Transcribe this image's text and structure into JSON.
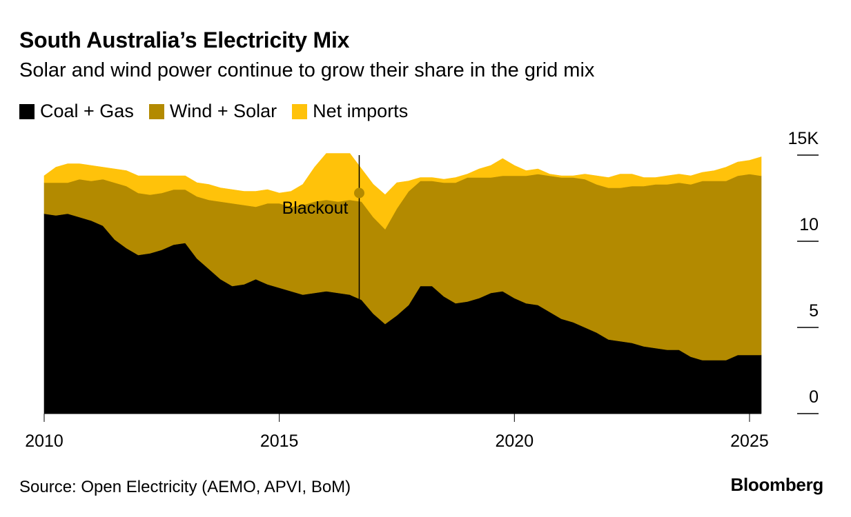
{
  "header": {
    "title": "South Australia’s Electricity Mix",
    "subtitle": "Solar and wind power continue to grow their share in the grid mix"
  },
  "footer": {
    "source": "Source: Open Electricity (AEMO, APVI, BoM)",
    "brand": "Bloomberg"
  },
  "chart_data": {
    "type": "area",
    "stacked": true,
    "x": [
      2010.0,
      2010.25,
      2010.5,
      2010.75,
      2011.0,
      2011.25,
      2011.5,
      2011.75,
      2012.0,
      2012.25,
      2012.5,
      2012.75,
      2013.0,
      2013.25,
      2013.5,
      2013.75,
      2014.0,
      2014.25,
      2014.5,
      2014.75,
      2015.0,
      2015.25,
      2015.5,
      2015.75,
      2016.0,
      2016.25,
      2016.5,
      2016.75,
      2017.0,
      2017.25,
      2017.5,
      2017.75,
      2018.0,
      2018.25,
      2018.5,
      2018.75,
      2019.0,
      2019.25,
      2019.5,
      2019.75,
      2020.0,
      2020.25,
      2020.5,
      2020.75,
      2021.0,
      2021.25,
      2021.5,
      2021.75,
      2022.0,
      2022.25,
      2022.5,
      2022.75,
      2023.0,
      2023.25,
      2023.5,
      2023.75,
      2024.0,
      2024.25,
      2024.5,
      2024.75,
      2025.0,
      2025.25
    ],
    "series": [
      {
        "name": "Coal + Gas",
        "color": "#000000",
        "values": [
          11.6,
          11.5,
          11.6,
          11.4,
          11.2,
          10.9,
          10.1,
          9.6,
          9.2,
          9.3,
          9.5,
          9.8,
          9.9,
          9.0,
          8.4,
          7.8,
          7.4,
          7.5,
          7.8,
          7.5,
          7.3,
          7.1,
          6.9,
          7.0,
          7.1,
          7.0,
          6.9,
          6.6,
          5.8,
          5.2,
          5.7,
          6.3,
          7.4,
          7.4,
          6.8,
          6.4,
          6.5,
          6.7,
          7.0,
          7.1,
          6.7,
          6.4,
          6.3,
          5.9,
          5.5,
          5.3,
          5.0,
          4.7,
          4.3,
          4.2,
          4.1,
          3.9,
          3.8,
          3.7,
          3.7,
          3.3,
          3.1,
          3.1,
          3.1,
          3.4,
          3.4,
          3.4
        ]
      },
      {
        "name": "Wind + Solar",
        "color": "#b38a00",
        "values": [
          1.8,
          1.9,
          1.8,
          2.2,
          2.3,
          2.7,
          3.3,
          3.6,
          3.6,
          3.4,
          3.3,
          3.2,
          3.1,
          3.6,
          4.0,
          4.5,
          4.8,
          4.6,
          4.2,
          4.7,
          4.9,
          4.9,
          5.2,
          5.3,
          5.3,
          5.3,
          5.5,
          5.7,
          5.6,
          5.5,
          6.2,
          6.6,
          6.1,
          6.1,
          6.6,
          7.0,
          7.2,
          7.0,
          6.7,
          6.7,
          7.1,
          7.4,
          7.6,
          7.9,
          8.2,
          8.4,
          8.6,
          8.6,
          8.8,
          8.9,
          9.1,
          9.3,
          9.5,
          9.6,
          9.7,
          10.0,
          10.4,
          10.4,
          10.4,
          10.4,
          10.5,
          10.4
        ]
      },
      {
        "name": "Net imports",
        "color": "#ffc20a",
        "values": [
          0.4,
          0.9,
          1.1,
          0.9,
          0.9,
          0.7,
          0.8,
          0.9,
          1.0,
          1.1,
          1.0,
          0.8,
          0.8,
          0.8,
          0.9,
          0.8,
          0.8,
          0.8,
          0.9,
          0.8,
          0.6,
          0.9,
          1.2,
          2.0,
          2.7,
          2.8,
          2.7,
          1.9,
          1.9,
          2.0,
          1.5,
          0.6,
          0.2,
          0.2,
          0.2,
          0.3,
          0.2,
          0.5,
          0.7,
          1.0,
          0.6,
          0.3,
          0.3,
          0.1,
          0.1,
          0.1,
          0.3,
          0.5,
          0.6,
          0.8,
          0.7,
          0.5,
          0.4,
          0.5,
          0.5,
          0.5,
          0.5,
          0.6,
          0.8,
          0.8,
          0.8,
          1.1
        ]
      }
    ],
    "xlim": [
      2010.0,
      2025.25
    ],
    "ylim": [
      0,
      15
    ],
    "x_ticks": [
      2010,
      2015,
      2020,
      2025
    ],
    "x_tick_labels": [
      "2010",
      "2015",
      "2020",
      "2025"
    ],
    "y_ticks": [
      0,
      5,
      10,
      15
    ],
    "y_tick_labels": [
      "0",
      "5",
      "10",
      "15K"
    ],
    "y_axis_side": "right",
    "grid": false,
    "legend": "top-left",
    "annotations": [
      {
        "label": "Blackout",
        "x": 2016.7,
        "y": 12.8
      }
    ]
  }
}
